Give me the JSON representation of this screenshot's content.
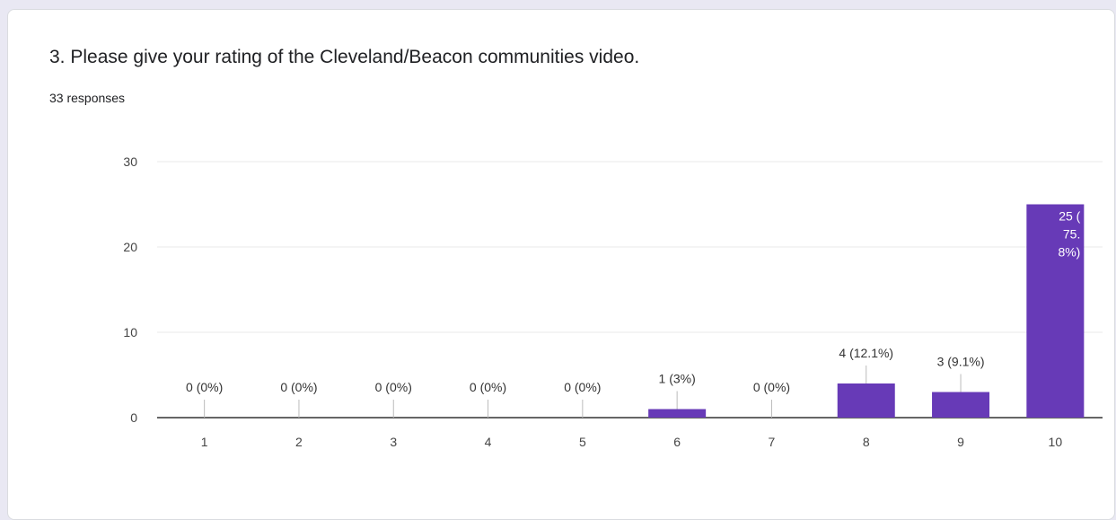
{
  "question": {
    "title": "3. Please give your rating of the Cleveland/Beacon communities video.",
    "responses": "33 responses"
  },
  "colors": {
    "bar": "#673ab7",
    "grid": "#e8e8e8",
    "axis": "#333333",
    "background": "#ffffff"
  },
  "chart_data": {
    "type": "bar",
    "categories": [
      "1",
      "2",
      "3",
      "4",
      "5",
      "6",
      "7",
      "8",
      "9",
      "10"
    ],
    "values": [
      0,
      0,
      0,
      0,
      0,
      1,
      0,
      4,
      3,
      25
    ],
    "data_labels": [
      "0 (0%)",
      "0 (0%)",
      "0 (0%)",
      "0 (0%)",
      "0 (0%)",
      "1 (3%)",
      "0 (0%)",
      "4 (12.1%)",
      "3 (9.1%)",
      "25 (\n75.\n8%)"
    ],
    "ylim": [
      0,
      30
    ],
    "yticks": [
      0,
      10,
      20,
      30
    ],
    "grid": true,
    "legend": "none"
  }
}
